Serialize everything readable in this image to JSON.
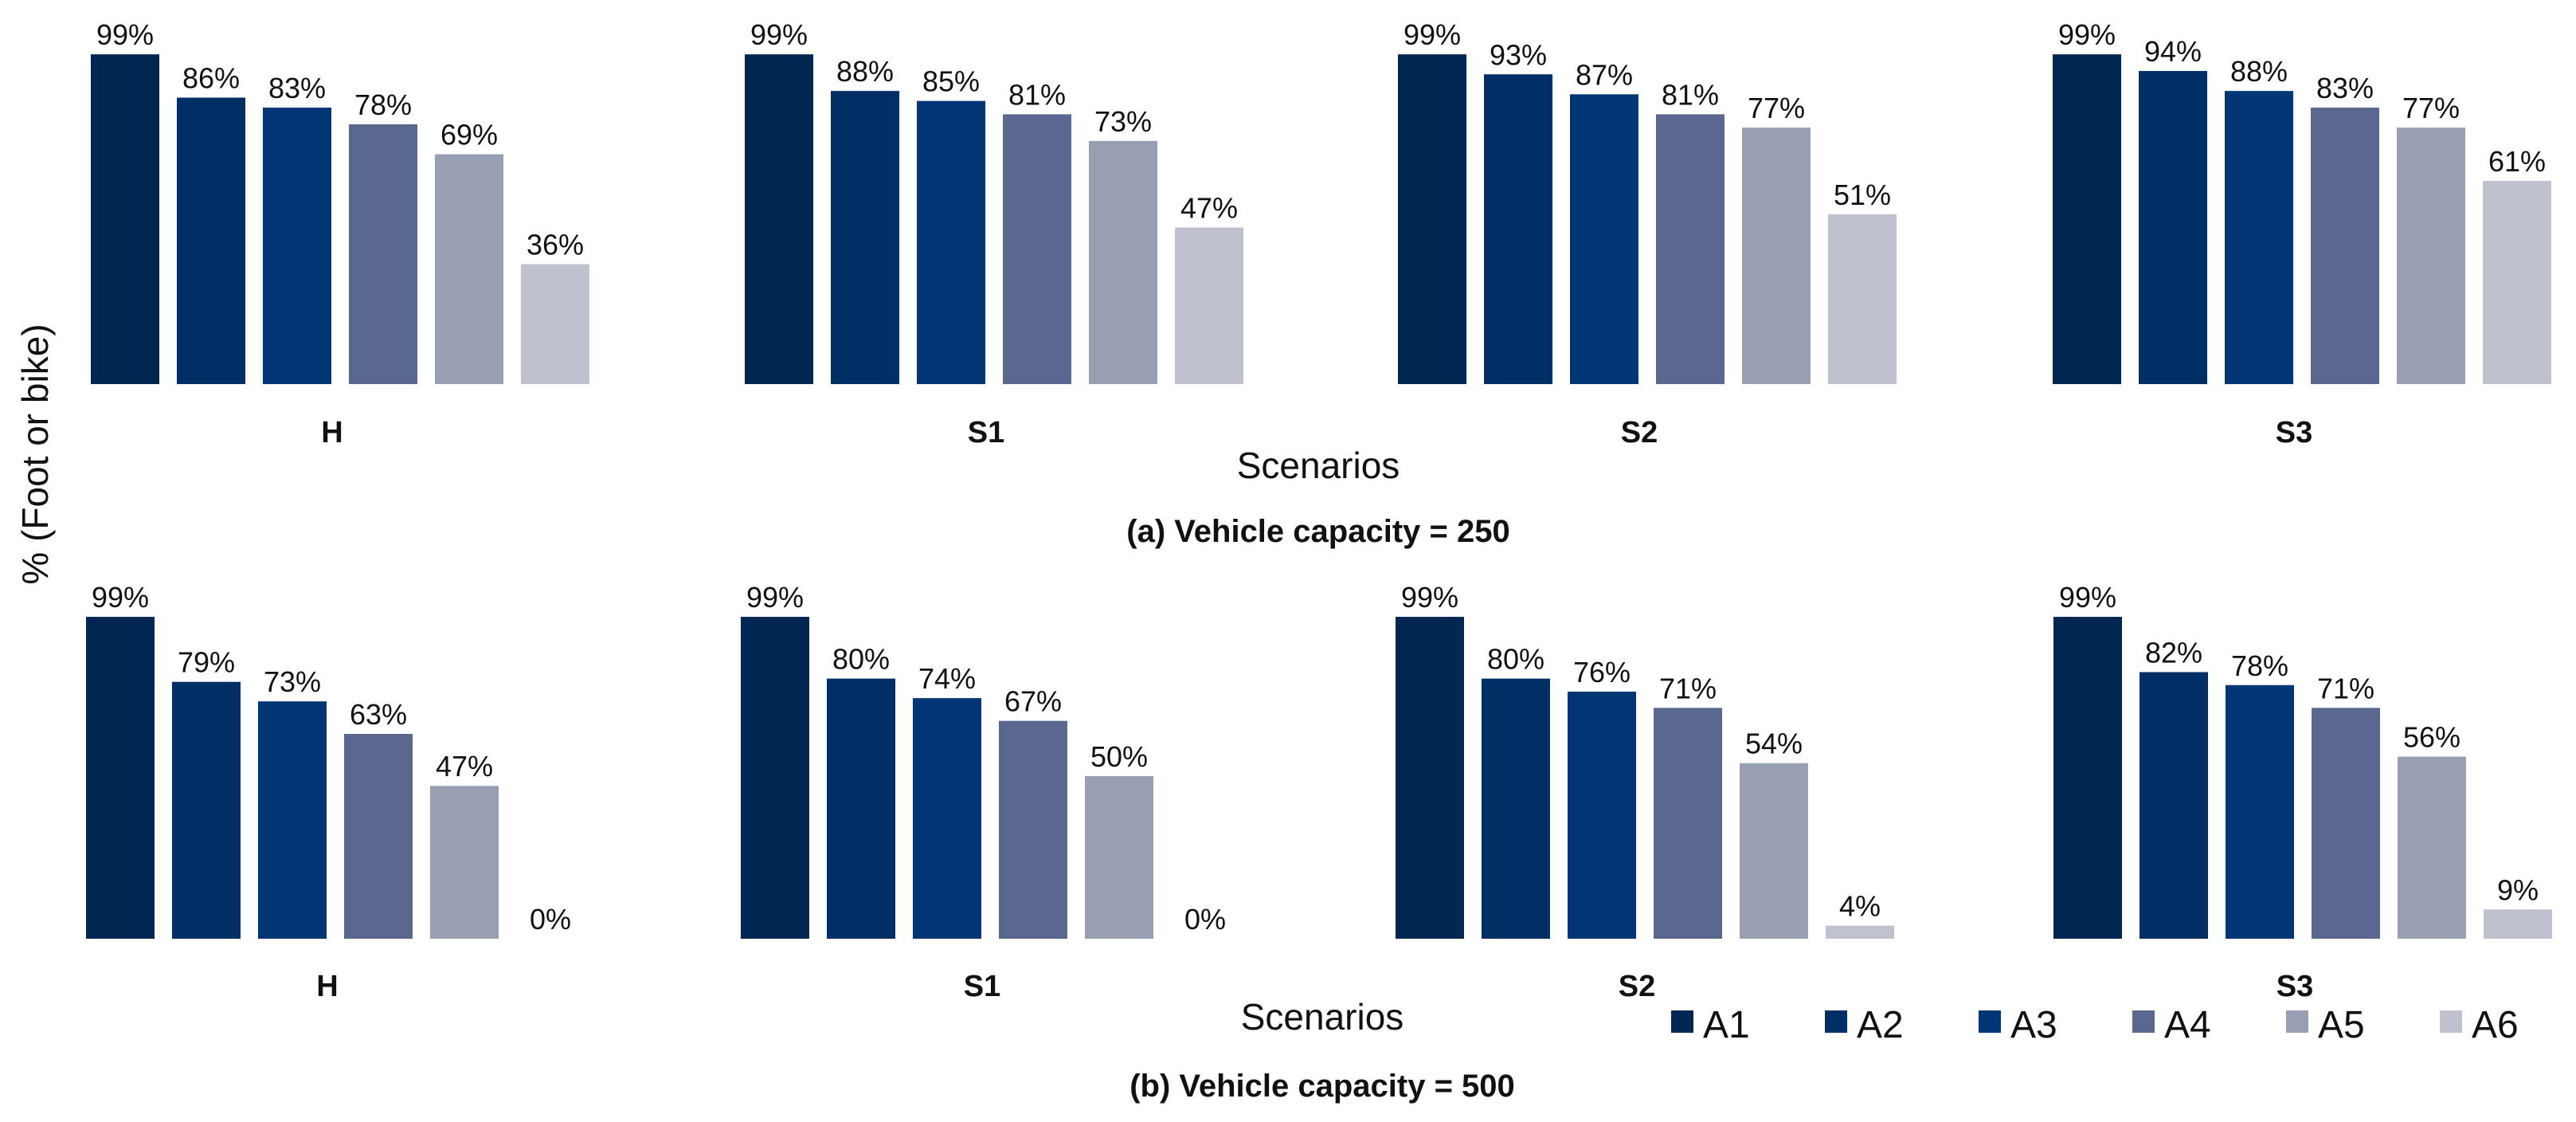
{
  "chart_data": [
    {
      "type": "bar",
      "title": "(a) Vehicle capacity = 250",
      "xlabel": "Scenarios",
      "ylabel": "% (Foot or bike)",
      "ylim": [
        0,
        100
      ],
      "grid": false,
      "categories": [
        "H",
        "S1",
        "S2",
        "S3"
      ],
      "series": [
        {
          "name": "A1",
          "values": [
            99,
            99,
            99,
            99
          ]
        },
        {
          "name": "A2",
          "values": [
            86,
            88,
            93,
            94
          ]
        },
        {
          "name": "A3",
          "values": [
            83,
            85,
            87,
            88
          ]
        },
        {
          "name": "A4",
          "values": [
            78,
            81,
            81,
            83
          ]
        },
        {
          "name": "A5",
          "values": [
            69,
            73,
            77,
            77
          ]
        },
        {
          "name": "A6",
          "values": [
            36,
            47,
            51,
            61
          ]
        }
      ]
    },
    {
      "type": "bar",
      "title": "(b) Vehicle capacity = 500",
      "xlabel": "Scenarios",
      "ylabel": "% (Foot or bike)",
      "ylim": [
        0,
        100
      ],
      "grid": false,
      "legend_position": "bottom-right",
      "categories": [
        "H",
        "S1",
        "S2",
        "S3"
      ],
      "series": [
        {
          "name": "A1",
          "values": [
            99,
            99,
            99,
            99
          ]
        },
        {
          "name": "A2",
          "values": [
            79,
            80,
            80,
            82
          ]
        },
        {
          "name": "A3",
          "values": [
            73,
            74,
            76,
            78
          ]
        },
        {
          "name": "A4",
          "values": [
            63,
            67,
            71,
            71
          ]
        },
        {
          "name": "A5",
          "values": [
            47,
            50,
            54,
            56
          ]
        },
        {
          "name": "A6",
          "values": [
            0,
            0,
            4,
            9
          ]
        }
      ]
    }
  ],
  "colors": {
    "A1": "#002652",
    "A2": "#002f66",
    "A3": "#003673",
    "A4": "#5a688f",
    "A5": "#989fb3",
    "A6": "#bfc1ce"
  },
  "value_suffix": "%"
}
